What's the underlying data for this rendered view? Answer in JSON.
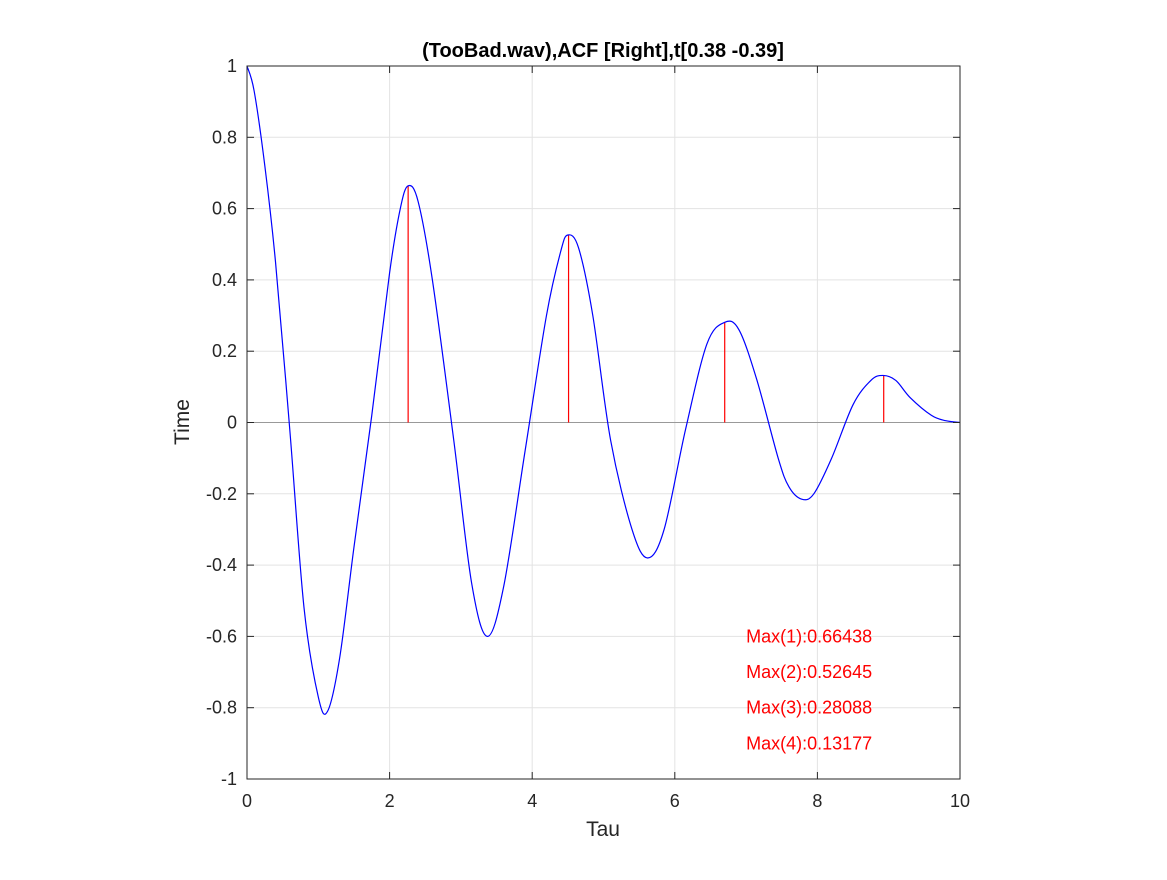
{
  "chart_data": {
    "type": "line",
    "title": "(TooBad.wav),ACF [Right],t[0.38 -0.39]",
    "xlabel": "Tau",
    "ylabel": "Time",
    "xlim": [
      0,
      10
    ],
    "ylim": [
      -1,
      1
    ],
    "xticks": [
      0,
      2,
      4,
      6,
      8,
      10
    ],
    "yticks": [
      -1,
      -0.8,
      -0.6,
      -0.4,
      -0.2,
      0,
      0.2,
      0.4,
      0.6,
      0.8,
      1
    ],
    "xtick_labels": [
      "0",
      "2",
      "4",
      "6",
      "8",
      "10"
    ],
    "ytick_labels": [
      "-1",
      "-0.8",
      "-0.6",
      "-0.4",
      "-0.2",
      "0",
      "0.2",
      "0.4",
      "0.6",
      "0.8",
      "1"
    ],
    "grid": true,
    "zero_line": true,
    "series": [
      {
        "color": "#0000ff",
        "x": [
          0,
          0.1,
          0.25,
          0.4,
          0.6,
          0.8,
          1.0,
          1.13,
          1.3,
          1.5,
          1.75,
          2.0,
          2.15,
          2.26,
          2.4,
          2.6,
          2.9,
          3.15,
          3.37,
          3.6,
          3.9,
          4.2,
          4.4,
          4.5,
          4.65,
          4.85,
          5.1,
          5.4,
          5.62,
          5.85,
          6.15,
          6.45,
          6.7,
          6.9,
          7.15,
          7.45,
          7.6,
          7.78,
          7.95,
          8.2,
          8.5,
          8.75,
          8.92,
          9.1,
          9.3,
          9.6,
          9.8,
          10.0
        ],
        "y": [
          1.0,
          0.93,
          0.72,
          0.45,
          -0.02,
          -0.52,
          -0.77,
          -0.81,
          -0.66,
          -0.35,
          0.02,
          0.42,
          0.6,
          0.664,
          0.62,
          0.4,
          -0.05,
          -0.45,
          -0.6,
          -0.46,
          -0.08,
          0.3,
          0.48,
          0.526,
          0.49,
          0.3,
          -0.05,
          -0.3,
          -0.38,
          -0.3,
          -0.02,
          0.22,
          0.281,
          0.26,
          0.12,
          -0.1,
          -0.18,
          -0.215,
          -0.2,
          -0.1,
          0.05,
          0.118,
          0.132,
          0.118,
          0.07,
          0.02,
          0.005,
          0.0
        ]
      }
    ],
    "peaks": [
      {
        "x": 2.26,
        "y": 0.66438
      },
      {
        "x": 4.51,
        "y": 0.52645
      },
      {
        "x": 6.7,
        "y": 0.28088
      },
      {
        "x": 8.93,
        "y": 0.13177
      }
    ],
    "peak_color": "#ff0000",
    "annotations": [
      {
        "text": "Max(1):0.66438",
        "x": 7.0,
        "y": -0.6
      },
      {
        "text": "Max(2):0.52645",
        "x": 7.0,
        "y": -0.7
      },
      {
        "text": "Max(3):0.28088",
        "x": 7.0,
        "y": -0.8
      },
      {
        "text": "Max(4):0.13177",
        "x": 7.0,
        "y": -0.9
      }
    ],
    "annotation_color": "#ff0000"
  }
}
